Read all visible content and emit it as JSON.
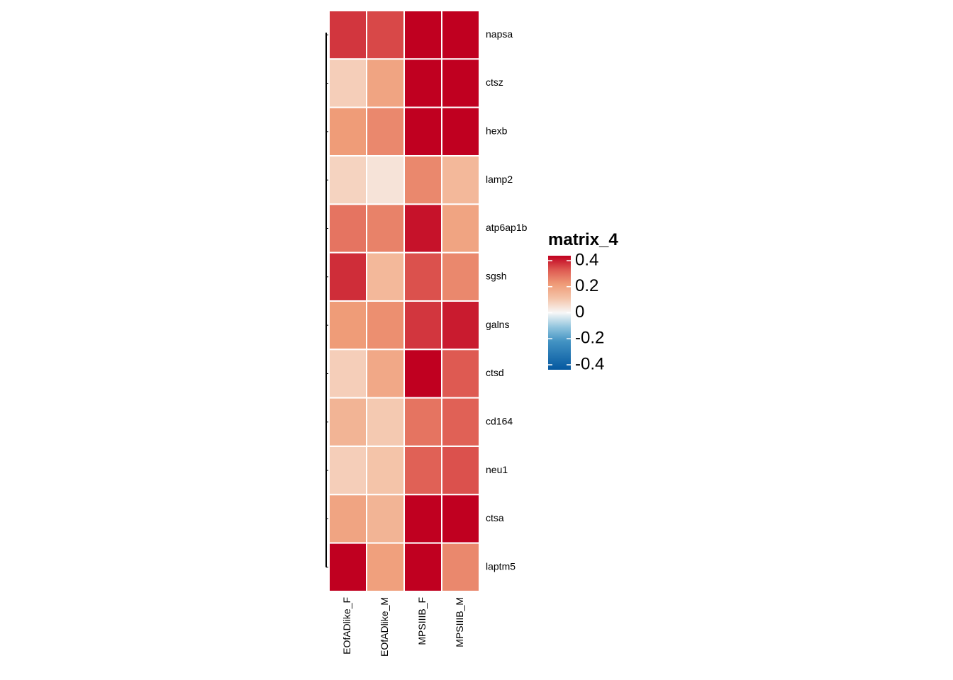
{
  "chart_data": {
    "type": "heatmap",
    "title": "",
    "xlabel": "",
    "ylabel": "",
    "columns": [
      "EOfADlike_F",
      "EOfADlike_M",
      "MPSIIIB_F",
      "MPSIIIB_M"
    ],
    "rows": [
      "napsa",
      "ctsz",
      "hexb",
      "lamp2",
      "atp6ap1b",
      "sgsh",
      "galns",
      "ctsd",
      "cd164",
      "neu1",
      "ctsa",
      "laptm5"
    ],
    "values": [
      [
        0.34,
        0.32,
        0.45,
        0.45
      ],
      [
        0.08,
        0.18,
        0.45,
        0.45
      ],
      [
        0.2,
        0.23,
        0.45,
        0.45
      ],
      [
        0.07,
        0.04,
        0.23,
        0.13
      ],
      [
        0.26,
        0.24,
        0.38,
        0.18
      ],
      [
        0.35,
        0.13,
        0.31,
        0.23
      ],
      [
        0.2,
        0.22,
        0.34,
        0.37
      ],
      [
        0.08,
        0.17,
        0.4,
        0.3
      ],
      [
        0.14,
        0.09,
        0.26,
        0.29
      ],
      [
        0.08,
        0.1,
        0.29,
        0.31
      ],
      [
        0.18,
        0.14,
        0.45,
        0.45
      ],
      [
        0.4,
        0.19,
        0.45,
        0.23
      ]
    ],
    "color_scale": {
      "min": -0.4,
      "max": 0.4,
      "low_color": "#0558A0",
      "mid_color": "#F7F7F7",
      "high_color": "#C00020",
      "stops": [
        {
          "value": -0.4,
          "color": "#0558A0"
        },
        {
          "value": -0.2,
          "color": "#4393C3"
        },
        {
          "value": -0.1,
          "color": "#92C5DE"
        },
        {
          "value": 0.0,
          "color": "#F7F7F7"
        },
        {
          "value": 0.1,
          "color": "#F4C4A9"
        },
        {
          "value": 0.2,
          "color": "#EF9C78"
        },
        {
          "value": 0.3,
          "color": "#DE5A52"
        },
        {
          "value": 0.4,
          "color": "#C00020"
        }
      ]
    },
    "cell_border_color": "#FFFFFF",
    "row_dendrogram": true,
    "legend": {
      "title": "matrix_4",
      "position": "right",
      "ticks": [
        {
          "value": 0.4,
          "label": "0.4"
        },
        {
          "value": 0.2,
          "label": "0.2"
        },
        {
          "value": 0,
          "label": "0"
        },
        {
          "value": -0.2,
          "label": "-0.2"
        },
        {
          "value": -0.4,
          "label": "-0.4"
        }
      ]
    }
  }
}
